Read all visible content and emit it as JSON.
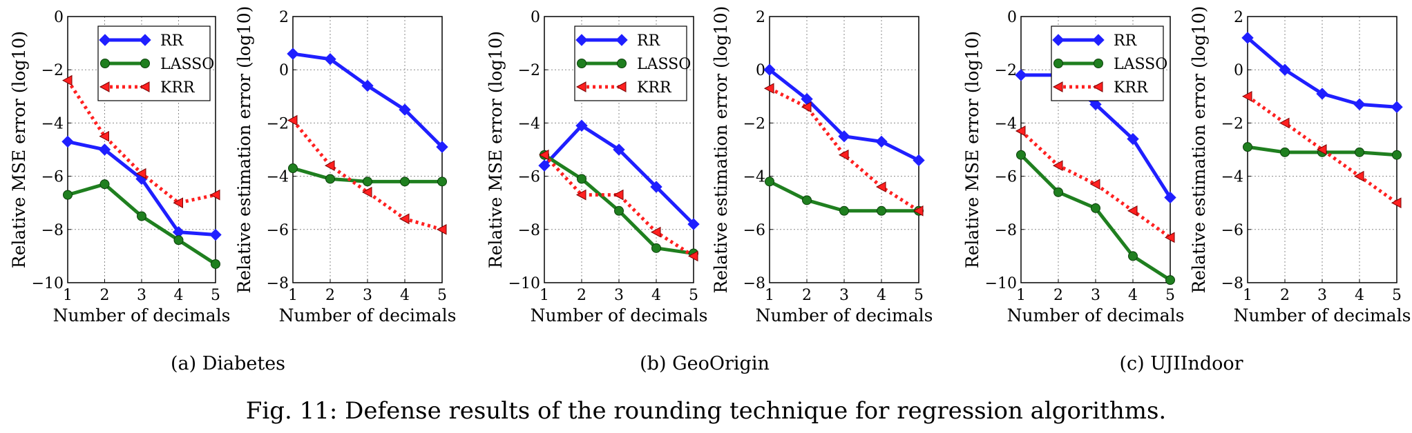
{
  "figure_caption": "Fig. 11: Defense results of the rounding technique for regression algorithms.",
  "colors": {
    "RR": "#1f1fff",
    "LASSO": "#1f7f1f",
    "KRR": "#ff2020"
  },
  "chart_data": [
    {
      "type": "line",
      "group": "Diabetes",
      "subcaption": "(a) Diabetes",
      "xlabel": "Number of decimals",
      "ylabel": "Relative MSE error (log10)",
      "x": [
        1,
        2,
        3,
        4,
        5
      ],
      "xlim": [
        1,
        5
      ],
      "ylim": [
        -10,
        0
      ],
      "yticks": [
        0,
        -2,
        -4,
        -6,
        -8,
        -10
      ],
      "grid": true,
      "legend_position": "top-right",
      "series": [
        {
          "name": "RR",
          "marker": "diamond",
          "style": "solid",
          "values": [
            -4.7,
            -5.0,
            -6.1,
            -8.1,
            -8.2
          ]
        },
        {
          "name": "LASSO",
          "marker": "circle",
          "style": "solid",
          "values": [
            -6.7,
            -6.3,
            -7.5,
            -8.4,
            -9.3
          ]
        },
        {
          "name": "KRR",
          "marker": "triangle-left",
          "style": "dotted",
          "values": [
            -2.4,
            -4.5,
            -5.9,
            -7.0,
            -6.7
          ]
        }
      ]
    },
    {
      "type": "line",
      "group": "Diabetes",
      "xlabel": "Number of decimals",
      "ylabel": "Relative estimation error (log10)",
      "x": [
        1,
        2,
        3,
        4,
        5
      ],
      "xlim": [
        1,
        5
      ],
      "ylim": [
        -8,
        2
      ],
      "yticks": [
        2,
        0,
        -2,
        -4,
        -6,
        -8
      ],
      "grid": true,
      "series": [
        {
          "name": "RR",
          "marker": "diamond",
          "style": "solid",
          "values": [
            0.6,
            0.4,
            -0.6,
            -1.5,
            -2.9
          ]
        },
        {
          "name": "LASSO",
          "marker": "circle",
          "style": "solid",
          "values": [
            -3.7,
            -4.1,
            -4.2,
            -4.2,
            -4.2
          ]
        },
        {
          "name": "KRR",
          "marker": "triangle-left",
          "style": "dotted",
          "values": [
            -1.9,
            -3.6,
            -4.6,
            -5.6,
            -6.0
          ]
        }
      ]
    },
    {
      "type": "line",
      "group": "GeoOrigin",
      "subcaption": "(b) GeoOrigin",
      "xlabel": "Number of decimals",
      "ylabel": "Relative MSE error (log10)",
      "x": [
        1,
        2,
        3,
        4,
        5
      ],
      "xlim": [
        1,
        5
      ],
      "ylim": [
        -10,
        0
      ],
      "yticks": [
        0,
        -2,
        -4,
        -6,
        -8,
        -10
      ],
      "grid": true,
      "legend_position": "top-right",
      "series": [
        {
          "name": "RR",
          "marker": "diamond",
          "style": "solid",
          "values": [
            -5.6,
            -4.1,
            -5.0,
            -6.4,
            -7.8
          ]
        },
        {
          "name": "LASSO",
          "marker": "circle",
          "style": "solid",
          "values": [
            -5.2,
            -6.1,
            -7.3,
            -8.7,
            -8.9
          ]
        },
        {
          "name": "KRR",
          "marker": "triangle-left",
          "style": "dotted",
          "values": [
            -5.2,
            -6.7,
            -6.7,
            -8.1,
            -9.0
          ]
        }
      ]
    },
    {
      "type": "line",
      "group": "GeoOrigin",
      "xlabel": "Number of decimals",
      "ylabel": "Relative estimation error (log10)",
      "x": [
        1,
        2,
        3,
        4,
        5
      ],
      "xlim": [
        1,
        5
      ],
      "ylim": [
        -8,
        2
      ],
      "yticks": [
        2,
        0,
        -2,
        -4,
        -6,
        -8
      ],
      "grid": true,
      "series": [
        {
          "name": "RR",
          "marker": "diamond",
          "style": "solid",
          "values": [
            0.0,
            -1.1,
            -2.5,
            -2.7,
            -3.4
          ]
        },
        {
          "name": "LASSO",
          "marker": "circle",
          "style": "solid",
          "values": [
            -4.2,
            -4.9,
            -5.3,
            -5.3,
            -5.3
          ]
        },
        {
          "name": "KRR",
          "marker": "triangle-left",
          "style": "dotted",
          "values": [
            -0.7,
            -1.4,
            -3.2,
            -4.4,
            -5.3
          ]
        }
      ]
    },
    {
      "type": "line",
      "group": "UJIIndoor",
      "subcaption": "(c) UJIIndoor",
      "xlabel": "Number of decimals",
      "ylabel": "Relative MSE error (log10)",
      "x": [
        1,
        2,
        3,
        4,
        5
      ],
      "xlim": [
        1,
        5
      ],
      "ylim": [
        -10,
        0
      ],
      "yticks": [
        0,
        -2,
        -4,
        -6,
        -8,
        -10
      ],
      "grid": true,
      "legend_position": "top-right",
      "series": [
        {
          "name": "RR",
          "marker": "diamond",
          "style": "solid",
          "values": [
            -2.2,
            -2.2,
            -3.3,
            -4.6,
            -6.8
          ]
        },
        {
          "name": "LASSO",
          "marker": "circle",
          "style": "solid",
          "values": [
            -5.2,
            -6.6,
            -7.2,
            -9.0,
            -9.9
          ]
        },
        {
          "name": "KRR",
          "marker": "triangle-left",
          "style": "dotted",
          "values": [
            -4.3,
            -5.6,
            -6.3,
            -7.3,
            -8.3
          ]
        }
      ]
    },
    {
      "type": "line",
      "group": "UJIIndoor",
      "xlabel": "Number of decimals",
      "ylabel": "Relative estimation error (log10)",
      "x": [
        1,
        2,
        3,
        4,
        5
      ],
      "xlim": [
        1,
        5
      ],
      "ylim": [
        -8,
        2
      ],
      "yticks": [
        2,
        0,
        -2,
        -4,
        -6,
        -8
      ],
      "grid": true,
      "series": [
        {
          "name": "RR",
          "marker": "diamond",
          "style": "solid",
          "values": [
            1.2,
            0.0,
            -0.9,
            -1.3,
            -1.4
          ]
        },
        {
          "name": "LASSO",
          "marker": "circle",
          "style": "solid",
          "values": [
            -2.9,
            -3.1,
            -3.1,
            -3.1,
            -3.2
          ]
        },
        {
          "name": "KRR",
          "marker": "triangle-left",
          "style": "dotted",
          "values": [
            -1.0,
            -2.0,
            -3.0,
            -4.0,
            -5.0
          ]
        }
      ]
    }
  ]
}
